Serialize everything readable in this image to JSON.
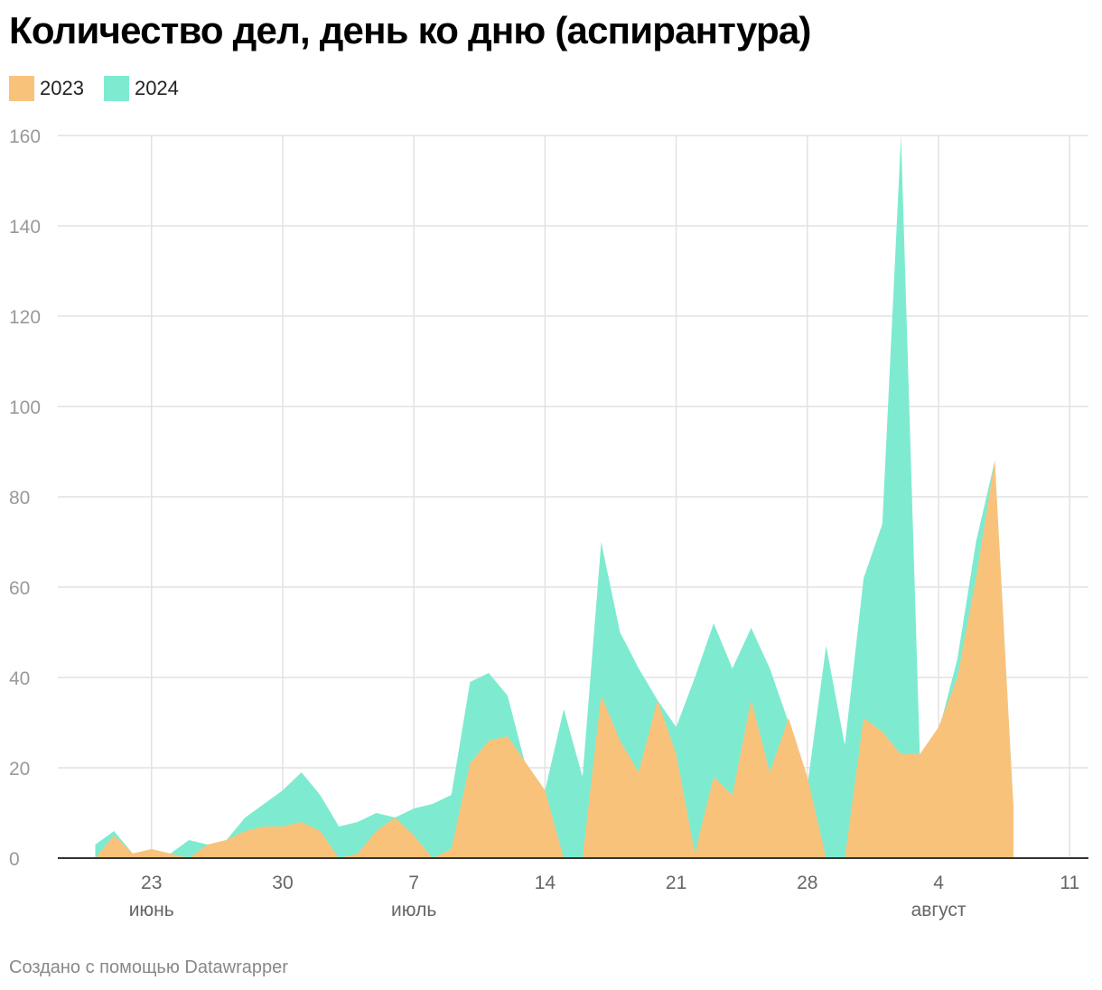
{
  "footer": "Создано с помощью Datawrapper",
  "chart_data": {
    "type": "area",
    "title": "Количество дел, день ко дню (аспирантура)",
    "ylim": [
      0,
      160
    ],
    "yticks": [
      0,
      20,
      40,
      60,
      80,
      100,
      120,
      140,
      160
    ],
    "xlim": [
      "2024-06-18",
      "2024-08-12"
    ],
    "xticks": [
      {
        "date": "2024-06-23",
        "label": "23",
        "month": "июнь"
      },
      {
        "date": "2024-06-30",
        "label": "30",
        "month": ""
      },
      {
        "date": "2024-07-07",
        "label": "7",
        "month": "июль"
      },
      {
        "date": "2024-07-14",
        "label": "14",
        "month": ""
      },
      {
        "date": "2024-07-21",
        "label": "21",
        "month": ""
      },
      {
        "date": "2024-07-28",
        "label": "28",
        "month": ""
      },
      {
        "date": "2024-08-04",
        "label": "4",
        "month": "август"
      },
      {
        "date": "2024-08-11",
        "label": "11",
        "month": ""
      }
    ],
    "grid": true,
    "legend_position": "top-left",
    "series": [
      {
        "name": "2024",
        "color": "#7eebd0",
        "points": [
          [
            "2024-06-20",
            3
          ],
          [
            "2024-06-21",
            6
          ],
          [
            "2024-06-22",
            1
          ],
          [
            "2024-06-23",
            2
          ],
          [
            "2024-06-24",
            1
          ],
          [
            "2024-06-25",
            4
          ],
          [
            "2024-06-26",
            3
          ],
          [
            "2024-06-27",
            4
          ],
          [
            "2024-06-28",
            9
          ],
          [
            "2024-06-29",
            12
          ],
          [
            "2024-06-30",
            15
          ],
          [
            "2024-07-01",
            19
          ],
          [
            "2024-07-02",
            14
          ],
          [
            "2024-07-03",
            7
          ],
          [
            "2024-07-04",
            8
          ],
          [
            "2024-07-05",
            10
          ],
          [
            "2024-07-06",
            9
          ],
          [
            "2024-07-07",
            11
          ],
          [
            "2024-07-08",
            12
          ],
          [
            "2024-07-09",
            14
          ],
          [
            "2024-07-10",
            39
          ],
          [
            "2024-07-11",
            41
          ],
          [
            "2024-07-12",
            36
          ],
          [
            "2024-07-13",
            20
          ],
          [
            "2024-07-14",
            15
          ],
          [
            "2024-07-15",
            33
          ],
          [
            "2024-07-16",
            18
          ],
          [
            "2024-07-17",
            70
          ],
          [
            "2024-07-18",
            50
          ],
          [
            "2024-07-19",
            42
          ],
          [
            "2024-07-20",
            35
          ],
          [
            "2024-07-21",
            29
          ],
          [
            "2024-07-22",
            40
          ],
          [
            "2024-07-23",
            52
          ],
          [
            "2024-07-24",
            42
          ],
          [
            "2024-07-25",
            51
          ],
          [
            "2024-07-26",
            42
          ],
          [
            "2024-07-27",
            30
          ],
          [
            "2024-07-28",
            16
          ],
          [
            "2024-07-29",
            47
          ],
          [
            "2024-07-30",
            25
          ],
          [
            "2024-07-31",
            62
          ],
          [
            "2024-08-01",
            74
          ],
          [
            "2024-08-02",
            160
          ],
          [
            "2024-08-03",
            23
          ],
          [
            "2024-08-04",
            28
          ],
          [
            "2024-08-05",
            44
          ],
          [
            "2024-08-06",
            70
          ],
          [
            "2024-08-07",
            88
          ],
          [
            "2024-08-08",
            11
          ]
        ]
      },
      {
        "name": "2023",
        "color": "#f9c27b",
        "points": [
          [
            "2024-06-20",
            0
          ],
          [
            "2024-06-21",
            5
          ],
          [
            "2024-06-22",
            1
          ],
          [
            "2024-06-23",
            2
          ],
          [
            "2024-06-24",
            1
          ],
          [
            "2024-06-25",
            0
          ],
          [
            "2024-06-26",
            3
          ],
          [
            "2024-06-27",
            4
          ],
          [
            "2024-06-28",
            6
          ],
          [
            "2024-06-29",
            7
          ],
          [
            "2024-06-30",
            7
          ],
          [
            "2024-07-01",
            8
          ],
          [
            "2024-07-02",
            6
          ],
          [
            "2024-07-03",
            0
          ],
          [
            "2024-07-04",
            1
          ],
          [
            "2024-07-05",
            6
          ],
          [
            "2024-07-06",
            9
          ],
          [
            "2024-07-07",
            5
          ],
          [
            "2024-07-08",
            0
          ],
          [
            "2024-07-09",
            2
          ],
          [
            "2024-07-10",
            21
          ],
          [
            "2024-07-11",
            26
          ],
          [
            "2024-07-12",
            27
          ],
          [
            "2024-07-13",
            21
          ],
          [
            "2024-07-14",
            15
          ],
          [
            "2024-07-15",
            0
          ],
          [
            "2024-07-16",
            0
          ],
          [
            "2024-07-17",
            36
          ],
          [
            "2024-07-18",
            26
          ],
          [
            "2024-07-19",
            19
          ],
          [
            "2024-07-20",
            35
          ],
          [
            "2024-07-21",
            23
          ],
          [
            "2024-07-22",
            1
          ],
          [
            "2024-07-23",
            18
          ],
          [
            "2024-07-24",
            14
          ],
          [
            "2024-07-25",
            35
          ],
          [
            "2024-07-26",
            19
          ],
          [
            "2024-07-27",
            31
          ],
          [
            "2024-07-28",
            18
          ],
          [
            "2024-07-29",
            0
          ],
          [
            "2024-07-30",
            0
          ],
          [
            "2024-07-31",
            31
          ],
          [
            "2024-08-01",
            28
          ],
          [
            "2024-08-02",
            23
          ],
          [
            "2024-08-03",
            23
          ],
          [
            "2024-08-04",
            29
          ],
          [
            "2024-08-05",
            40
          ],
          [
            "2024-08-06",
            62
          ],
          [
            "2024-08-07",
            88
          ],
          [
            "2024-08-08",
            11
          ]
        ]
      }
    ]
  }
}
